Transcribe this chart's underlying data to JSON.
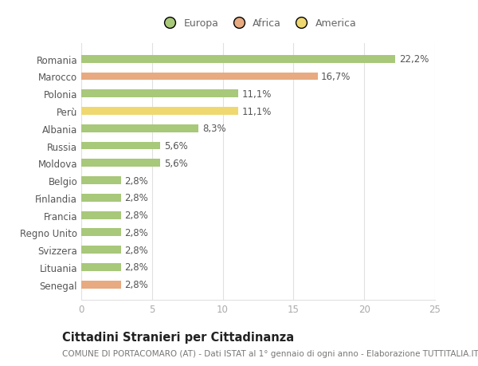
{
  "categories": [
    "Romania",
    "Marocco",
    "Polonia",
    "Perù",
    "Albania",
    "Russia",
    "Moldova",
    "Belgio",
    "Finlandia",
    "Francia",
    "Regno Unito",
    "Svizzera",
    "Lituania",
    "Senegal"
  ],
  "values": [
    22.2,
    16.7,
    11.1,
    11.1,
    8.3,
    5.6,
    5.6,
    2.8,
    2.8,
    2.8,
    2.8,
    2.8,
    2.8,
    2.8
  ],
  "labels": [
    "22,2%",
    "16,7%",
    "11,1%",
    "11,1%",
    "8,3%",
    "5,6%",
    "5,6%",
    "2,8%",
    "2,8%",
    "2,8%",
    "2,8%",
    "2,8%",
    "2,8%",
    "2,8%"
  ],
  "bar_colors": [
    "#a8c87a",
    "#e8aa80",
    "#a8c87a",
    "#f0d870",
    "#a8c87a",
    "#a8c87a",
    "#a8c87a",
    "#a8c87a",
    "#a8c87a",
    "#a8c87a",
    "#a8c87a",
    "#a8c87a",
    "#a8c87a",
    "#e8aa80"
  ],
  "legend_labels": [
    "Europa",
    "Africa",
    "America"
  ],
  "legend_colors": [
    "#a8c87a",
    "#e8aa80",
    "#f0d870"
  ],
  "xlim": [
    0,
    25
  ],
  "xticks": [
    0,
    5,
    10,
    15,
    20,
    25
  ],
  "title": "Cittadini Stranieri per Cittadinanza",
  "subtitle": "COMUNE DI PORTACOMARO (AT) - Dati ISTAT al 1° gennaio di ogni anno - Elaborazione TUTTITALIA.IT",
  "bg_color": "#ffffff",
  "grid_color": "#e0e0e0",
  "label_fontsize": 8.5,
  "bar_label_fontsize": 8.5,
  "title_fontsize": 10.5,
  "subtitle_fontsize": 7.5
}
